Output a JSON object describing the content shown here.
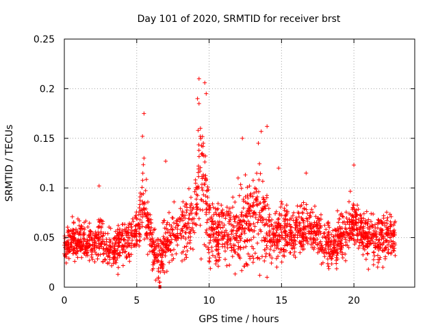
{
  "chart_data": {
    "type": "scatter",
    "title": "Day 101 of 2020, SRMTID for receiver brst",
    "xlabel": "GPS time / hours",
    "ylabel": "SRMTID / TECUs",
    "xlim": [
      0,
      24.2
    ],
    "ylim": [
      0,
      0.25
    ],
    "x_ticks": [
      0,
      5,
      10,
      15,
      20
    ],
    "x_tick_labels": [
      "0",
      "5",
      "10",
      "15",
      "20"
    ],
    "y_ticks": [
      0,
      0.05,
      0.1,
      0.15,
      0.2,
      0.25
    ],
    "y_tick_labels": [
      "0",
      "0.05",
      "0.1",
      "0.15",
      "0.2",
      "0.25"
    ],
    "grid": true,
    "marker": "+",
    "series_color": "#ff0000",
    "trend": [
      [
        0.0,
        0.04
      ],
      [
        0.5,
        0.045
      ],
      [
        1.0,
        0.048
      ],
      [
        1.5,
        0.045
      ],
      [
        2.0,
        0.042
      ],
      [
        2.5,
        0.05
      ],
      [
        3.0,
        0.038
      ],
      [
        3.5,
        0.04
      ],
      [
        4.0,
        0.044
      ],
      [
        4.5,
        0.05
      ],
      [
        5.0,
        0.055
      ],
      [
        5.3,
        0.065
      ],
      [
        5.5,
        0.085
      ],
      [
        5.8,
        0.06
      ],
      [
        6.2,
        0.035
      ],
      [
        6.6,
        0.03
      ],
      [
        7.0,
        0.045
      ],
      [
        7.5,
        0.055
      ],
      [
        8.0,
        0.06
      ],
      [
        8.5,
        0.058
      ],
      [
        9.0,
        0.07
      ],
      [
        9.3,
        0.11
      ],
      [
        9.6,
        0.1
      ],
      [
        10.0,
        0.055
      ],
      [
        10.5,
        0.052
      ],
      [
        11.0,
        0.055
      ],
      [
        11.5,
        0.058
      ],
      [
        12.0,
        0.055
      ],
      [
        12.5,
        0.065
      ],
      [
        13.0,
        0.065
      ],
      [
        13.5,
        0.08
      ],
      [
        14.0,
        0.055
      ],
      [
        14.5,
        0.05
      ],
      [
        15.0,
        0.055
      ],
      [
        16.0,
        0.052
      ],
      [
        17.0,
        0.058
      ],
      [
        18.0,
        0.045
      ],
      [
        18.5,
        0.04
      ],
      [
        19.0,
        0.05
      ],
      [
        20.0,
        0.065
      ],
      [
        20.5,
        0.055
      ],
      [
        21.0,
        0.05
      ],
      [
        21.5,
        0.048
      ],
      [
        22.0,
        0.052
      ],
      [
        22.8,
        0.05
      ]
    ],
    "spread": [
      [
        0.0,
        0.012
      ],
      [
        5.0,
        0.015
      ],
      [
        5.5,
        0.025
      ],
      [
        6.0,
        0.015
      ],
      [
        9.0,
        0.025
      ],
      [
        9.5,
        0.045
      ],
      [
        10.2,
        0.02
      ],
      [
        13.5,
        0.03
      ],
      [
        14.5,
        0.018
      ],
      [
        23.0,
        0.015
      ]
    ],
    "peaks": [
      {
        "x": 9.3,
        "y": 0.21
      },
      {
        "x": 9.7,
        "y": 0.206
      },
      {
        "x": 9.8,
        "y": 0.195
      },
      {
        "x": 9.2,
        "y": 0.19
      },
      {
        "x": 9.3,
        "y": 0.185
      },
      {
        "x": 5.5,
        "y": 0.175
      },
      {
        "x": 13.6,
        "y": 0.157
      },
      {
        "x": 14.0,
        "y": 0.162
      },
      {
        "x": 9.4,
        "y": 0.16
      },
      {
        "x": 12.3,
        "y": 0.15
      },
      {
        "x": 5.4,
        "y": 0.152
      },
      {
        "x": 9.6,
        "y": 0.145
      },
      {
        "x": 13.4,
        "y": 0.145
      },
      {
        "x": 5.5,
        "y": 0.13
      },
      {
        "x": 7.0,
        "y": 0.127
      },
      {
        "x": 16.7,
        "y": 0.115
      },
      {
        "x": 20.0,
        "y": 0.123
      },
      {
        "x": 14.8,
        "y": 0.12
      },
      {
        "x": 12.0,
        "y": 0.11
      },
      {
        "x": 6.6,
        "y": 0.005
      },
      {
        "x": 6.5,
        "y": 0.01
      },
      {
        "x": 14.0,
        "y": 0.01
      },
      {
        "x": 13.5,
        "y": 0.012
      },
      {
        "x": 3.7,
        "y": 0.013
      },
      {
        "x": 21.0,
        "y": 0.018
      },
      {
        "x": 22.0,
        "y": 0.02
      },
      {
        "x": 2.4,
        "y": 0.102
      }
    ],
    "outlier": {
      "x": 6.6,
      "y": 0.0
    }
  }
}
